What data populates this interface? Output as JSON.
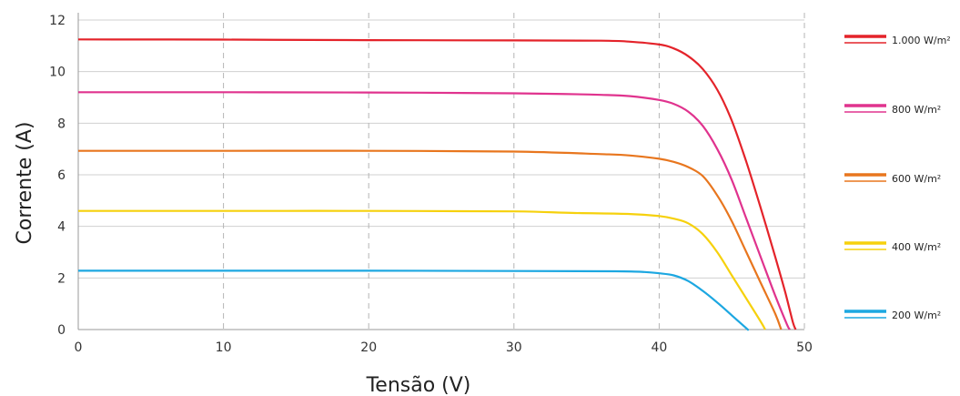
{
  "chart_data": {
    "type": "line",
    "title": "",
    "xlabel": "Tensão (V)",
    "ylabel": "Corrente (A)",
    "xlim": [
      0,
      50
    ],
    "ylim": [
      0,
      12
    ],
    "xticks": [
      0,
      10,
      20,
      30,
      40,
      50
    ],
    "yticks": [
      0,
      2,
      4,
      6,
      8,
      10,
      12
    ],
    "grid": {
      "x": "dashed",
      "y": "solid"
    },
    "legend_position": "right",
    "series": [
      {
        "name": "1.000 W/m²",
        "color": "#e4232a",
        "points": [
          [
            0,
            11.25
          ],
          [
            10,
            11.24
          ],
          [
            20,
            11.22
          ],
          [
            30,
            11.21
          ],
          [
            36,
            11.2
          ],
          [
            38,
            11.16
          ],
          [
            40,
            11.05
          ],
          [
            41,
            10.9
          ],
          [
            42,
            10.6
          ],
          [
            43,
            10.1
          ],
          [
            44,
            9.3
          ],
          [
            45,
            8.1
          ],
          [
            46,
            6.5
          ],
          [
            47,
            4.7
          ],
          [
            48,
            2.8
          ],
          [
            48.7,
            1.4
          ],
          [
            49.2,
            0.3
          ],
          [
            49.4,
            0
          ]
        ]
      },
      {
        "name": "800 W/m²",
        "color": "#e0338e",
        "points": [
          [
            0,
            9.2
          ],
          [
            10,
            9.2
          ],
          [
            20,
            9.19
          ],
          [
            30,
            9.16
          ],
          [
            36,
            9.1
          ],
          [
            38,
            9.05
          ],
          [
            40,
            8.9
          ],
          [
            41,
            8.75
          ],
          [
            42,
            8.45
          ],
          [
            43,
            7.9
          ],
          [
            44,
            7.0
          ],
          [
            45,
            5.8
          ],
          [
            46,
            4.3
          ],
          [
            47,
            2.8
          ],
          [
            48,
            1.3
          ],
          [
            48.8,
            0.2
          ],
          [
            49.0,
            0
          ]
        ]
      },
      {
        "name": "600 W/m²",
        "color": "#e8761e",
        "points": [
          [
            0,
            6.93
          ],
          [
            10,
            6.93
          ],
          [
            20,
            6.93
          ],
          [
            30,
            6.9
          ],
          [
            36,
            6.8
          ],
          [
            38,
            6.75
          ],
          [
            40,
            6.62
          ],
          [
            41,
            6.5
          ],
          [
            42,
            6.3
          ],
          [
            43,
            5.95
          ],
          [
            44,
            5.2
          ],
          [
            45,
            4.2
          ],
          [
            46,
            3.0
          ],
          [
            47,
            1.8
          ],
          [
            48,
            0.6
          ],
          [
            48.4,
            0
          ]
        ]
      },
      {
        "name": "400 W/m²",
        "color": "#f6d10d",
        "points": [
          [
            0,
            4.6
          ],
          [
            10,
            4.6
          ],
          [
            20,
            4.6
          ],
          [
            30,
            4.58
          ],
          [
            34,
            4.52
          ],
          [
            38,
            4.48
          ],
          [
            40,
            4.4
          ],
          [
            41,
            4.3
          ],
          [
            42,
            4.12
          ],
          [
            43,
            3.7
          ],
          [
            44,
            3.0
          ],
          [
            45,
            2.1
          ],
          [
            46,
            1.2
          ],
          [
            47,
            0.3
          ],
          [
            47.3,
            0
          ]
        ]
      },
      {
        "name": "200 W/m²",
        "color": "#1ca7e1",
        "points": [
          [
            0,
            2.28
          ],
          [
            10,
            2.28
          ],
          [
            20,
            2.28
          ],
          [
            30,
            2.27
          ],
          [
            37,
            2.26
          ],
          [
            39,
            2.23
          ],
          [
            40,
            2.18
          ],
          [
            41,
            2.1
          ],
          [
            42,
            1.88
          ],
          [
            43,
            1.5
          ],
          [
            44,
            1.05
          ],
          [
            45,
            0.55
          ],
          [
            46,
            0.05
          ],
          [
            46.1,
            0
          ]
        ]
      }
    ]
  }
}
